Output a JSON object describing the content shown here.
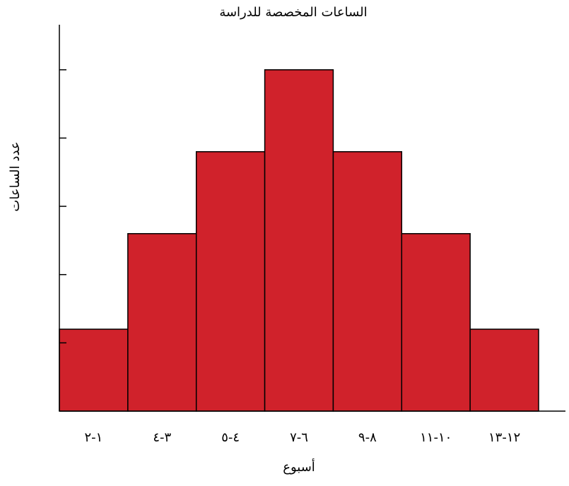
{
  "chart_data": {
    "type": "bar",
    "title": "الساعات المخصصة للدراسة",
    "x_label": "أسبوع",
    "y_label": "عدد الساعات",
    "categories": [
      "١-٢",
      "٣-٤",
      "٤-٥",
      "٦-٧",
      "٨-٩",
      "١٠-١١",
      "١٢-١٣"
    ],
    "values": [
      1.2,
      2.6,
      3.8,
      5,
      3.8,
      2.6,
      1.2
    ],
    "color": "#d0222b",
    "ylim": [
      0,
      5.66
    ],
    "yticks": [
      1,
      2,
      3,
      4,
      5
    ],
    "grid": false
  }
}
